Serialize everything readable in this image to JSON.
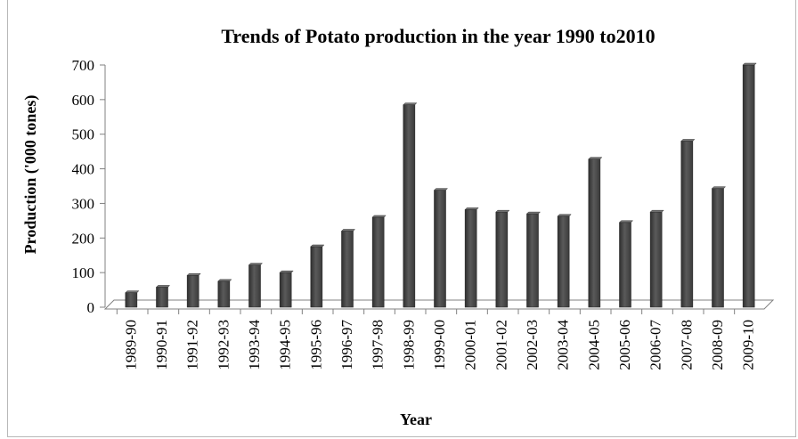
{
  "chart_data": {
    "type": "bar",
    "title": "Trends of Potato production in the year 1990 to2010",
    "xlabel": "Year",
    "ylabel": "Production ('000 tones)",
    "ylim": [
      0,
      700
    ],
    "yticks": [
      0,
      100,
      200,
      300,
      400,
      500,
      600,
      700
    ],
    "grid": false,
    "legend": "none",
    "bar_color": "#4a4a4a",
    "categories": [
      "1989-90",
      "1990-91",
      "1991-92",
      "1992-93",
      "1993-94",
      "1994-95",
      "1995-96",
      "1996-97",
      "1997-98",
      "1998-99",
      "1999-00",
      "2000-01",
      "2001-02",
      "2002-03",
      "2003-04",
      "2004-05",
      "2005-06",
      "2006-07",
      "2007-08",
      "2008-09",
      "2009-10"
    ],
    "values": [
      42,
      58,
      92,
      75,
      122,
      100,
      175,
      220,
      260,
      585,
      338,
      282,
      275,
      270,
      263,
      428,
      245,
      275,
      480,
      343,
      700
    ]
  }
}
